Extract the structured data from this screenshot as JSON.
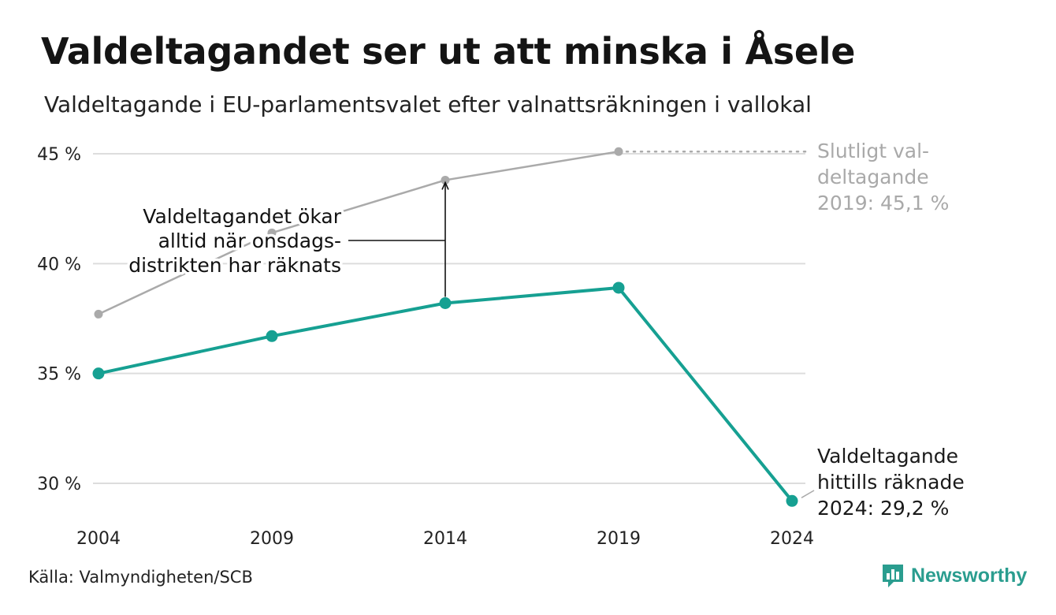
{
  "title": "Valdeltagandet ser ut att minska i Åsele",
  "subtitle": "Valdeltagande i EU-parlamentsvalet efter valnattsräkningen i vallokal",
  "source": "Källa: Valmyndigheten/SCB",
  "brand": "Newsworthy",
  "colors": {
    "accent": "#16a092",
    "gray_series": "#aaaaaa",
    "grid": "#dddddd"
  },
  "chart_data": {
    "type": "line",
    "title": "Valdeltagandet ser ut att minska i Åsele",
    "subtitle": "Valdeltagande i EU-parlamentsvalet efter valnattsräkningen i vallokal",
    "x": [
      "2004",
      "2009",
      "2014",
      "2019",
      "2024"
    ],
    "ylim": [
      28.5,
      46
    ],
    "yticks": [
      30,
      35,
      40,
      45
    ],
    "ytick_labels": [
      "30 %",
      "35 %",
      "40 %",
      "45 %"
    ],
    "grid": true,
    "series": [
      {
        "name": "",
        "color": "#aaaaaa",
        "values": [
          37.7,
          41.4,
          43.8,
          45.1,
          null
        ]
      },
      {
        "name": "",
        "color": "#16a092",
        "values": [
          35.0,
          36.7,
          38.2,
          38.9,
          29.2
        ]
      }
    ],
    "annotations": {
      "final": [
        "Slutligt val-",
        "deltagande",
        "2019: 45,1 %"
      ],
      "counted": [
        "Valdeltagande",
        "hittills räknade",
        "2024: 29,2 %"
      ],
      "increase": [
        "Valdeltagandet ökar",
        "alltid när onsdags-",
        "distrikten har räknats"
      ]
    }
  }
}
